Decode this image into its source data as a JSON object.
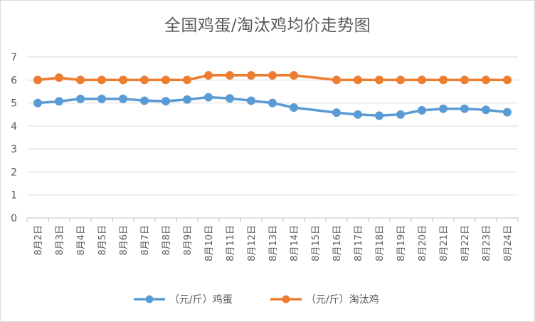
{
  "chart_data": {
    "type": "line",
    "title": "全国鸡蛋/淘汰鸡均价走势图",
    "categories": [
      "8月2日",
      "8月3日",
      "8月4日",
      "8月5日",
      "8月6日",
      "8月7日",
      "8月8日",
      "8月9日",
      "8月10日",
      "8月11日",
      "8月12日",
      "8月13日",
      "8月14日",
      "8月15日",
      "8月16日",
      "8月17日",
      "8月18日",
      "8月19日",
      "8月20日",
      "8月21日",
      "8月22日",
      "8月23日",
      "8月24日"
    ],
    "ylim": [
      0,
      7
    ],
    "yticks": [
      "0",
      "1",
      "2",
      "3",
      "4",
      "5",
      "6",
      "7"
    ],
    "grid": true,
    "legend_position": "bottom",
    "series": [
      {
        "name": "（元/斤）鸡蛋",
        "color": "#5b9bd5",
        "values": [
          5.0,
          5.07,
          5.18,
          5.18,
          5.18,
          5.1,
          5.08,
          5.15,
          5.25,
          5.2,
          5.1,
          5.0,
          4.8,
          null,
          4.58,
          4.5,
          4.45,
          4.5,
          4.68,
          4.75,
          4.75,
          4.7,
          4.6
        ]
      },
      {
        "name": "（元/斤）淘汰鸡",
        "color": "#ed7d31",
        "values": [
          6.0,
          6.1,
          6.0,
          6.0,
          6.0,
          6.0,
          6.0,
          6.0,
          6.2,
          6.2,
          6.2,
          6.2,
          6.2,
          null,
          6.0,
          6.0,
          6.0,
          6.0,
          6.0,
          6.0,
          6.0,
          6.0,
          6.0
        ]
      }
    ]
  }
}
